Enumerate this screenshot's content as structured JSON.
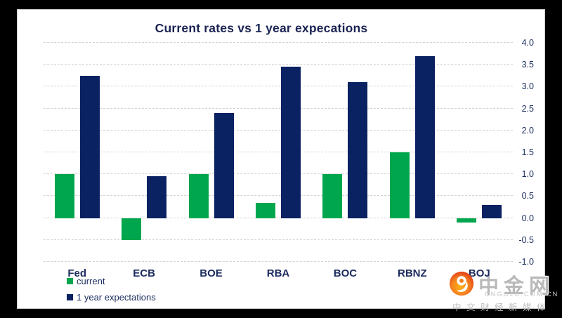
{
  "frame": {
    "background": "#000000",
    "panel_background": "#ffffff",
    "panel_border": "#c9c9c9"
  },
  "chart_data": {
    "type": "bar",
    "title": "Current rates vs 1 year expecations",
    "categories": [
      "Fed",
      "ECB",
      "BOE",
      "RBA",
      "BOC",
      "RBNZ",
      "BOJ"
    ],
    "series": [
      {
        "name": "current",
        "color": "#00a64d",
        "values": [
          1.0,
          -0.5,
          1.0,
          0.35,
          1.0,
          1.5,
          -0.1
        ]
      },
      {
        "name": "1 year expectations",
        "color": "#0a2162",
        "values": [
          3.25,
          0.95,
          2.4,
          3.45,
          3.1,
          3.7,
          0.3
        ]
      }
    ],
    "ylim": [
      -1.0,
      4.0
    ],
    "ytick_step": 0.5,
    "yticks": [
      "4.0",
      "3.5",
      "3.0",
      "2.5",
      "2.0",
      "1.5",
      "1.0",
      "0.5",
      "0.0",
      "-0.5",
      "-1.0"
    ],
    "y_axis_side": "right",
    "grid": "horizontal dashed",
    "grid_color": "#d4d4d4",
    "axis_text_color": "#1e3060",
    "title_color": "#1a2353",
    "legend_position": "bottom-left"
  },
  "watermark": {
    "brand": "中金网",
    "domain": "CNGOLD.COM.CN",
    "tagline": "中文财经新媒体",
    "text_color": "#bdbdbd",
    "logo_colors": {
      "outer": "#e23a17",
      "mid": "#f58220",
      "inner": "#fcb316"
    }
  }
}
